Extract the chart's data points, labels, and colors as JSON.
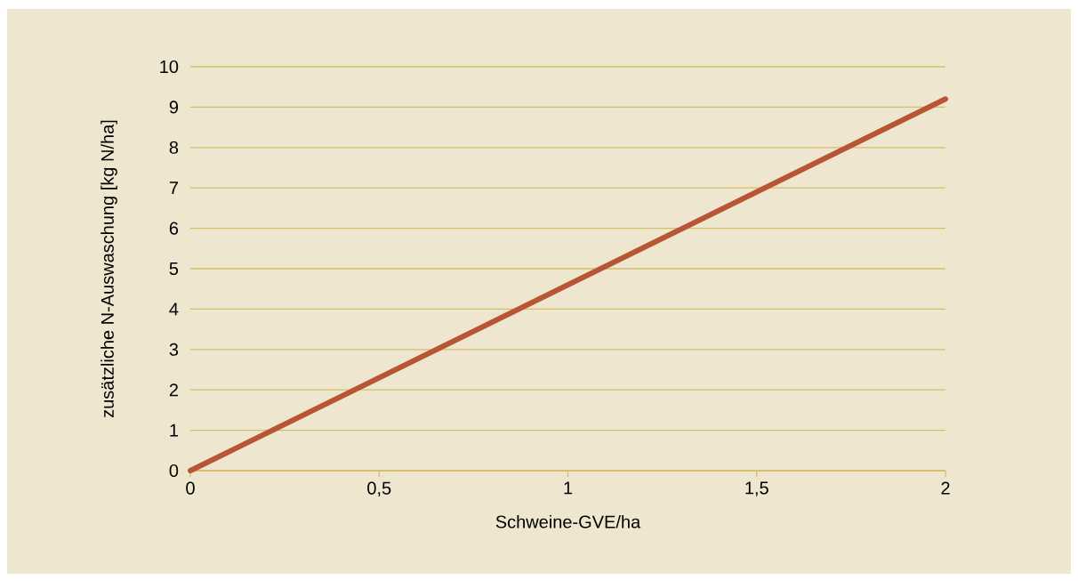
{
  "chart_data": {
    "type": "line",
    "xlabel": "Schweine-GVE/ha",
    "ylabel": "zusätzliche N-Auswaschung [kg N/ha]",
    "x": [
      0,
      2
    ],
    "series": [
      {
        "color": "#b85535",
        "values": [
          0,
          9.2
        ]
      }
    ],
    "xlim": [
      0,
      2
    ],
    "ylim": [
      0,
      10
    ],
    "xticks": [
      0,
      {
        "value": 0.5,
        "label": "0,5"
      },
      1,
      {
        "value": 1.5,
        "label": "1,5"
      },
      2
    ],
    "yticks": [
      0,
      1,
      2,
      3,
      4,
      5,
      6,
      7,
      8,
      9,
      10
    ],
    "grid": "y",
    "marker": "none",
    "line_style": "solid"
  }
}
